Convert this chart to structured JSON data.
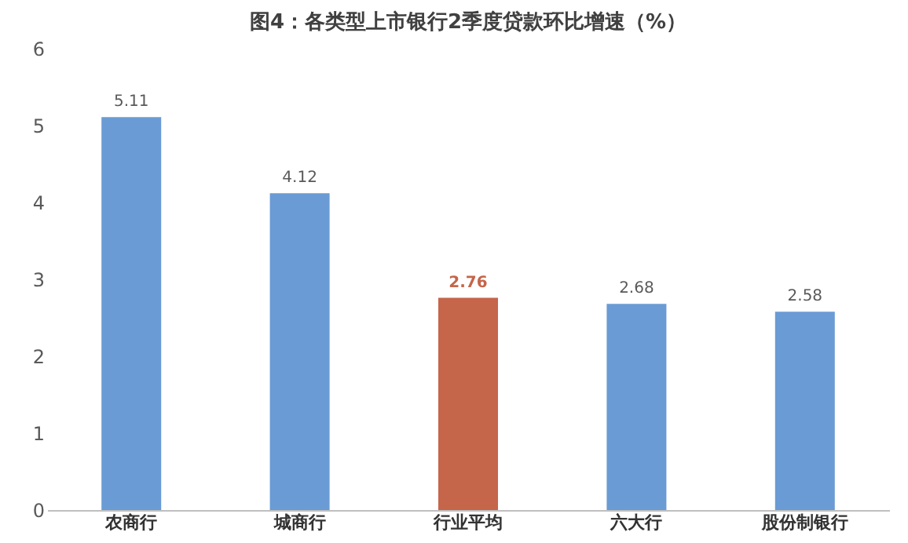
{
  "chart_data": {
    "type": "bar",
    "title": "图4：各类型上市银行2季度贷款环比增速（%）",
    "categories": [
      "农商行",
      "城商行",
      "行业平均",
      "六大行",
      "股份制银行"
    ],
    "values": [
      5.11,
      4.12,
      2.76,
      2.68,
      2.58
    ],
    "colors": [
      "#6a9bd4",
      "#6a9bd4",
      "#c5654a",
      "#6a9bd4",
      "#6a9bd4"
    ],
    "ylim": [
      0,
      6
    ],
    "yticks": [
      0,
      1,
      2,
      3,
      4,
      5,
      6
    ],
    "grid": false,
    "data_labels": true
  }
}
